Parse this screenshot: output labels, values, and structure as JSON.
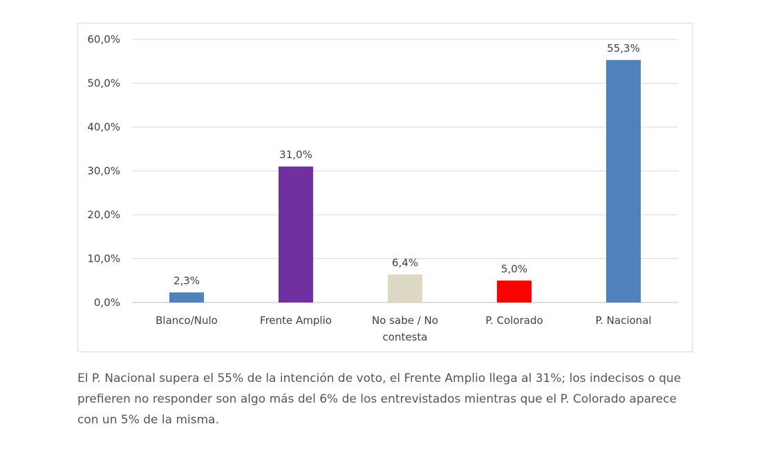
{
  "chart_data": {
    "type": "bar",
    "categories": [
      "Blanco/Nulo",
      "Frente Amplio",
      "No sabe / No contesta",
      "P. Colorado",
      "P. Nacional"
    ],
    "category_lines": [
      [
        "Blanco/Nulo"
      ],
      [
        "Frente Amplio"
      ],
      [
        "No sabe / No",
        "contesta"
      ],
      [
        "P. Colorado"
      ],
      [
        "P. Nacional"
      ]
    ],
    "values": [
      2.3,
      31.0,
      6.4,
      5.0,
      55.3
    ],
    "value_labels": [
      "2,3%",
      "31,0%",
      "6,4%",
      "5,0%",
      "55,3%"
    ],
    "colors": [
      "#4f81bd",
      "#7030a0",
      "#ddd9c4",
      "#ff0000",
      "#4f81bd"
    ],
    "ylim": [
      0,
      60
    ],
    "yticks": [
      "0,0%",
      "10,0%",
      "20,0%",
      "30,0%",
      "40,0%",
      "50,0%",
      "60,0%"
    ],
    "grid": true,
    "legend": "none"
  },
  "caption": "El P. Nacional supera el 55% de la intención de voto, el Frente Amplio llega al 31%; los indecisos o que prefieren no responder son algo más del 6% de los entrevistados mientras que el P. Colorado aparece con un 5% de la misma."
}
